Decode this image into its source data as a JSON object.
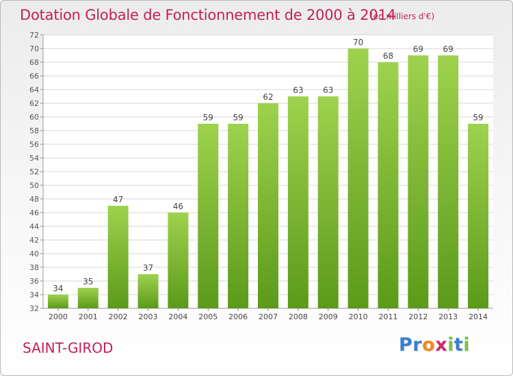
{
  "title": "Dotation Globale de Fonctionnement de 2000 à 2014",
  "unit_note": "(en milliers d'€)",
  "commune": "SAINT-GIROD",
  "logo": {
    "text": "Proxiti",
    "letters": [
      {
        "ch": "P",
        "color": "#3a7fd0"
      },
      {
        "ch": "r",
        "color": "#3a7fd0"
      },
      {
        "ch": "o",
        "color": "#f08a1c"
      },
      {
        "ch": "x",
        "color": "#cc2a6a"
      },
      {
        "ch": "i",
        "color": "#7cc242"
      },
      {
        "ch": "t",
        "color": "#3a7fd0"
      },
      {
        "ch": "i",
        "color": "#7cc242"
      }
    ]
  },
  "colors": {
    "title": "#c41e5a",
    "bar_top": "#9ed24e",
    "bar_bottom": "#5c9a1a",
    "grid": "#d4d4d4"
  },
  "chart_data": {
    "type": "bar",
    "categories": [
      "2000",
      "2001",
      "2002",
      "2003",
      "2004",
      "2005",
      "2006",
      "2007",
      "2008",
      "2009",
      "2010",
      "2011",
      "2012",
      "2013",
      "2014"
    ],
    "values": [
      34,
      35,
      47,
      37,
      46,
      59,
      59,
      62,
      63,
      63,
      70,
      68,
      69,
      69,
      59
    ],
    "ylim": [
      32,
      72
    ],
    "yticks": [
      32,
      34,
      36,
      38,
      40,
      42,
      44,
      46,
      48,
      50,
      52,
      54,
      56,
      58,
      60,
      62,
      64,
      66,
      68,
      70,
      72
    ],
    "grid": true,
    "data_labels": true
  }
}
